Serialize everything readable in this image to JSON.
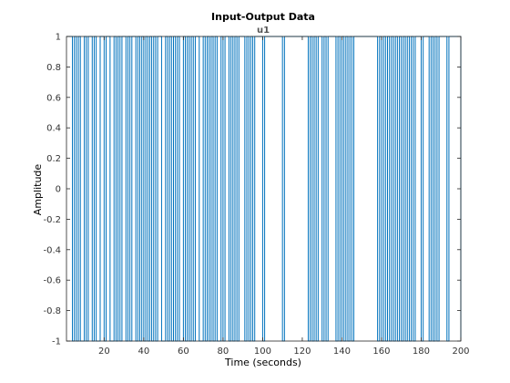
{
  "chart_data": {
    "type": "line",
    "title": "Input-Output Data",
    "subtitle": "u1",
    "xlabel": "Time (seconds)",
    "ylabel": "Amplitude",
    "xlim": [
      1,
      200
    ],
    "ylim": [
      -1,
      1
    ],
    "xticks": [
      20,
      40,
      60,
      80,
      100,
      120,
      140,
      160,
      180,
      200
    ],
    "xtick_labels": [
      "20",
      "40",
      "60",
      "80",
      "100",
      "120",
      "140",
      "160",
      "180",
      "200"
    ],
    "yticks": [
      -1,
      -0.8,
      -0.6,
      -0.4,
      -0.2,
      0,
      0.2,
      0.4,
      0.6,
      0.8,
      1
    ],
    "ytick_labels": [
      "-1",
      "-0.8",
      "-0.6",
      "-0.4",
      "-0.2",
      "0",
      "0.2",
      "0.4",
      "0.6",
      "0.8",
      "1"
    ],
    "grid": false,
    "series_color": "#0072BD",
    "series": [
      {
        "values": [
          1,
          1,
          1,
          -1,
          1,
          -1,
          1,
          -1,
          -1,
          1,
          -1,
          1,
          1,
          -1,
          1,
          -1,
          -1,
          1,
          1,
          -1,
          1,
          1,
          -1,
          -1,
          1,
          -1,
          1,
          -1,
          1,
          1,
          -1,
          1,
          -1,
          1,
          1,
          -1,
          1,
          -1,
          1,
          -1,
          1,
          -1,
          1,
          -1,
          1,
          -1,
          1,
          1,
          -1,
          -1,
          1,
          -1,
          1,
          -1,
          1,
          -1,
          1,
          -1,
          -1,
          1,
          -1,
          1,
          -1,
          1,
          -1,
          1,
          1,
          -1,
          -1,
          1,
          -1,
          1,
          -1,
          1,
          -1,
          1,
          -1,
          -1,
          1,
          -1,
          1,
          1,
          -1,
          1,
          -1,
          1,
          -1,
          1,
          1,
          1,
          -1,
          1,
          -1,
          1,
          -1,
          1,
          1,
          1,
          1,
          -1,
          1,
          1,
          1,
          1,
          1,
          1,
          1,
          1,
          1,
          -1,
          1,
          1,
          1,
          1,
          1,
          1,
          1,
          1,
          1,
          1,
          1,
          1,
          -1,
          1,
          -1,
          1,
          -1,
          1,
          1,
          -1,
          1,
          -1,
          1,
          1,
          1,
          1,
          -1,
          1,
          -1,
          1,
          -1,
          1,
          -1,
          1,
          -1,
          1,
          1,
          1,
          1,
          1,
          1,
          1,
          1,
          1,
          1,
          1,
          1,
          -1,
          1,
          -1,
          1,
          -1,
          1,
          -1,
          1,
          -1,
          1,
          -1,
          1,
          -1,
          1,
          -1,
          1,
          -1,
          1,
          -1,
          1,
          1,
          1,
          -1,
          1,
          1,
          1,
          -1,
          1,
          -1,
          1,
          -1,
          1,
          1,
          1,
          1,
          -1,
          1,
          1,
          1,
          1,
          1,
          1,
          -1,
          1,
          1,
          1,
          1,
          1,
          1,
          1,
          1,
          1,
          1,
          1
        ]
      }
    ]
  }
}
